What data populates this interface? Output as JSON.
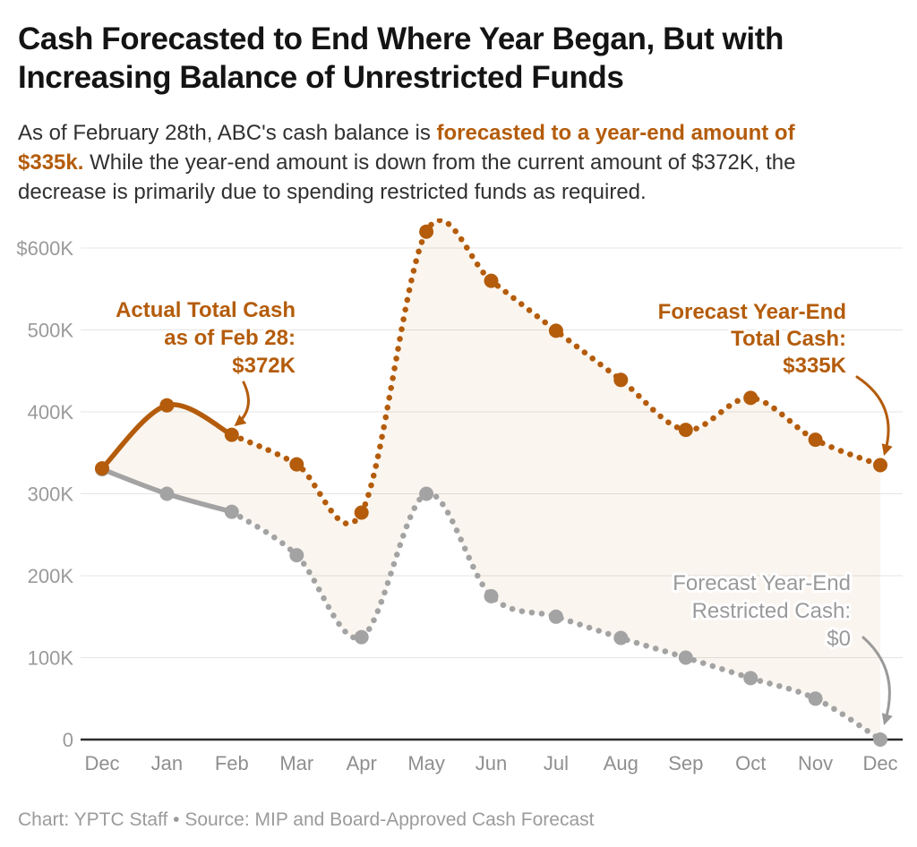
{
  "header": {
    "title": "Cash Forecasted to End Where Year Began, But with Increasing Balance of Unrestricted Funds"
  },
  "subtitle": {
    "pre": "As of February 28th, ABC's cash balance is ",
    "highlight": "forecasted to a year-end amount of $335k.",
    "post": " While the year-end amount is down from the current amount of $372K, the decrease is primarily due to spending restricted funds as required."
  },
  "chart_data": {
    "type": "line",
    "title": "Cash Forecasted to End Where Year Began, But with Increasing Balance of Unrestricted Funds",
    "categories": [
      "Dec",
      "Jan",
      "Feb",
      "Mar",
      "Apr",
      "May",
      "Jun",
      "Jul",
      "Aug",
      "Sep",
      "Oct",
      "Nov",
      "Dec"
    ],
    "series": [
      {
        "name": "Total Cash",
        "color": "#b45c0b",
        "style": "solid through Feb (actual), dotted after (forecast)",
        "actual_through_index": 2,
        "values": [
          331,
          408,
          372,
          336,
          277,
          620,
          560,
          499,
          439,
          378,
          417,
          366,
          335
        ]
      },
      {
        "name": "Restricted Cash",
        "color": "#a3a3a3",
        "style": "solid through Feb (actual), dotted after (forecast)",
        "actual_through_index": 2,
        "values": [
          330,
          300,
          278,
          225,
          125,
          300,
          175,
          150,
          124,
          100,
          75,
          50,
          0
        ]
      }
    ],
    "yticks": [
      {
        "label": "$600K",
        "value": 600
      },
      {
        "label": "500K",
        "value": 500
      },
      {
        "label": "400K",
        "value": 400
      },
      {
        "label": "300K",
        "value": 300
      },
      {
        "label": "200K",
        "value": 200
      },
      {
        "label": "100K",
        "value": 100
      },
      {
        "label": "0",
        "value": 0
      }
    ],
    "xlabel": "",
    "ylabel": "",
    "ylim": [
      0,
      640
    ],
    "grid": true,
    "legend_position": "none",
    "fill_between_series": {
      "color": "#b8620f",
      "opacity": 0.065
    },
    "units": "thousands of dollars (K)"
  },
  "annotations": [
    {
      "id": "actual-total-cash",
      "lines": [
        "Actual Total Cash",
        "as of Feb 28:",
        "$372K"
      ],
      "color": "#b45c0b",
      "points_to": "Feb, Total Cash"
    },
    {
      "id": "forecast-total-cash",
      "lines": [
        "Forecast Year-End",
        "Total Cash:",
        "$335K"
      ],
      "color": "#b45c0b",
      "points_to": "Dec (year-end), Total Cash"
    },
    {
      "id": "forecast-restricted-cash",
      "lines": [
        "Forecast Year-End",
        "Restricted Cash:",
        "$0"
      ],
      "color": "#9a9a9a",
      "points_to": "Dec (year-end), Restricted Cash"
    }
  ],
  "footer": {
    "text": "Chart: YPTC Staff • Source: MIP and Board-Approved Cash Forecast"
  }
}
